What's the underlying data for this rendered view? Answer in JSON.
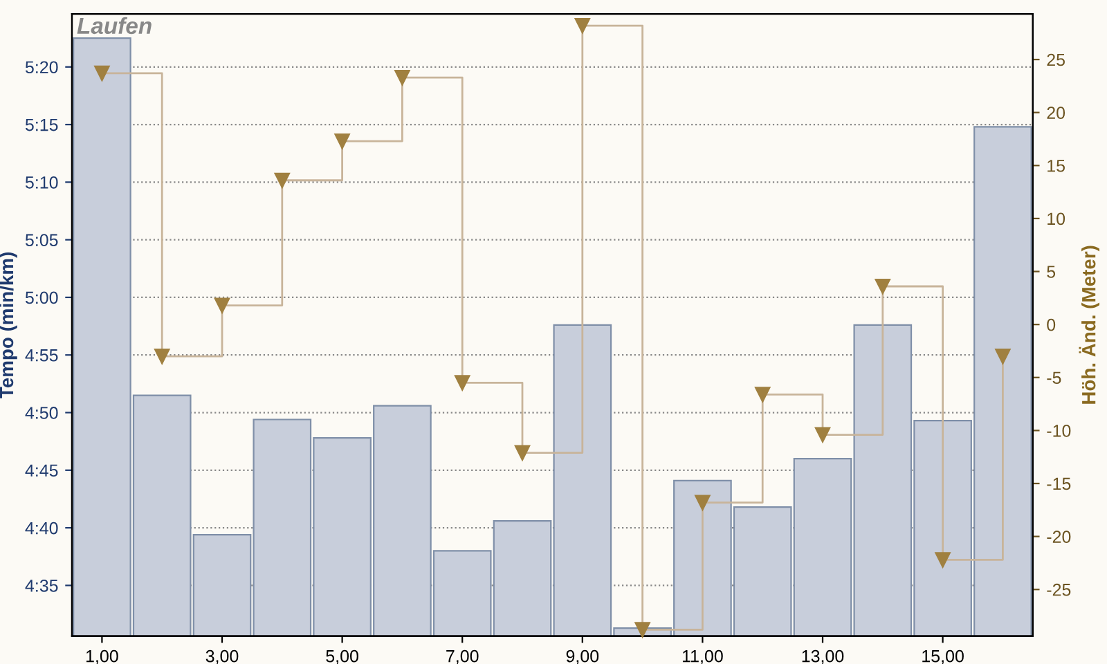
{
  "chart_data": {
    "type": "bar",
    "title": "Laufen",
    "ylabel": "Tempo (min/km)",
    "y2label": "Höh. Änd. (Meter)",
    "x": [
      1,
      2,
      3,
      4,
      5,
      6,
      7,
      8,
      9,
      10,
      11,
      12,
      13,
      14,
      15,
      16
    ],
    "xlim": [
      0.5,
      16.5
    ],
    "xticks": [
      {
        "value": 1,
        "label": "1,00"
      },
      {
        "value": 3,
        "label": "3,00"
      },
      {
        "value": 5,
        "label": "5,00"
      },
      {
        "value": 7,
        "label": "7,00"
      },
      {
        "value": 9,
        "label": "9,00"
      },
      {
        "value": 11,
        "label": "11,00"
      },
      {
        "value": 13,
        "label": "13,00"
      },
      {
        "value": 15,
        "label": "15,00"
      }
    ],
    "ylim": [
      270.6,
      324.6
    ],
    "yticks": [
      {
        "value": 275,
        "label": "4:35"
      },
      {
        "value": 280,
        "label": "4:40"
      },
      {
        "value": 285,
        "label": "4:45"
      },
      {
        "value": 290,
        "label": "4:50"
      },
      {
        "value": 295,
        "label": "4:55"
      },
      {
        "value": 300,
        "label": "5:00"
      },
      {
        "value": 305,
        "label": "5:05"
      },
      {
        "value": 310,
        "label": "5:10"
      },
      {
        "value": 315,
        "label": "5:15"
      },
      {
        "value": 320,
        "label": "5:20"
      }
    ],
    "y2lim": [
      -29.4,
      29.3
    ],
    "y2ticks": [
      -25,
      -20,
      -15,
      -10,
      -5,
      0,
      5,
      10,
      15,
      20,
      25
    ],
    "grid": "y",
    "legend": false,
    "series": [
      {
        "color": "#c8cedb",
        "values": [
          322.5,
          291.5,
          279.4,
          289.4,
          287.8,
          290.6,
          278.0,
          280.6,
          297.6,
          271.3,
          284.1,
          281.8,
          286.0,
          297.6,
          289.3,
          314.8
        ]
      },
      {
        "type": "step",
        "axis": "y2",
        "color": "#a08040",
        "marker": "triangle",
        "values": [
          23.7,
          -3.0,
          1.8,
          13.6,
          17.3,
          23.3,
          -5.5,
          -12.1,
          28.2,
          -28.8,
          -16.8,
          -6.6,
          -10.4,
          3.6,
          -22.2,
          -3.0
        ]
      }
    ]
  }
}
